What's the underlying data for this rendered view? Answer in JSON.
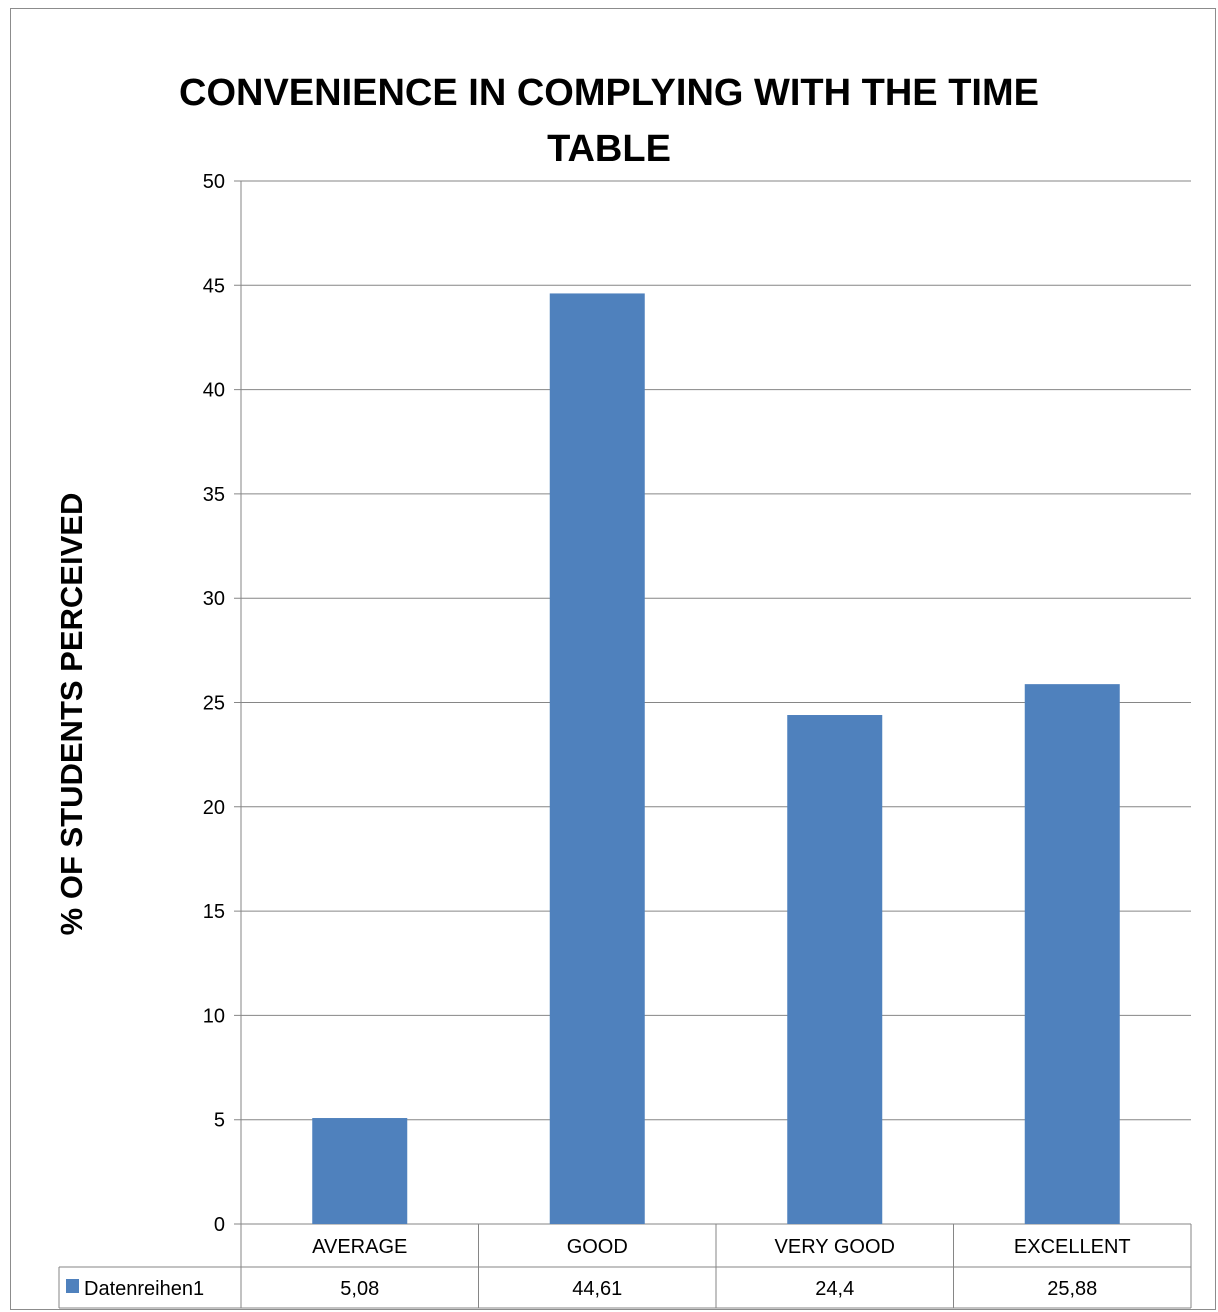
{
  "chart_data": {
    "type": "bar",
    "title_lines": [
      "CONVENIENCE IN COMPLYING WITH THE TIME",
      "TABLE"
    ],
    "ylabel": "% OF STUDENTS PERCEIVED",
    "xlabel": "",
    "categories": [
      "AVERAGE",
      "GOOD",
      "VERY GOOD",
      "EXCELLENT"
    ],
    "ylim": [
      0,
      50
    ],
    "yticks": [
      0,
      5,
      10,
      15,
      20,
      25,
      30,
      35,
      40,
      45,
      50
    ],
    "grid": true,
    "series": [
      {
        "name": "Datenreihen1",
        "values": [
          5.08,
          44.61,
          24.4,
          25.88
        ],
        "value_labels": [
          "5,08",
          "44,61",
          "24,4",
          "25,88"
        ],
        "color": "#4f81bd"
      }
    ],
    "data_table": true
  }
}
